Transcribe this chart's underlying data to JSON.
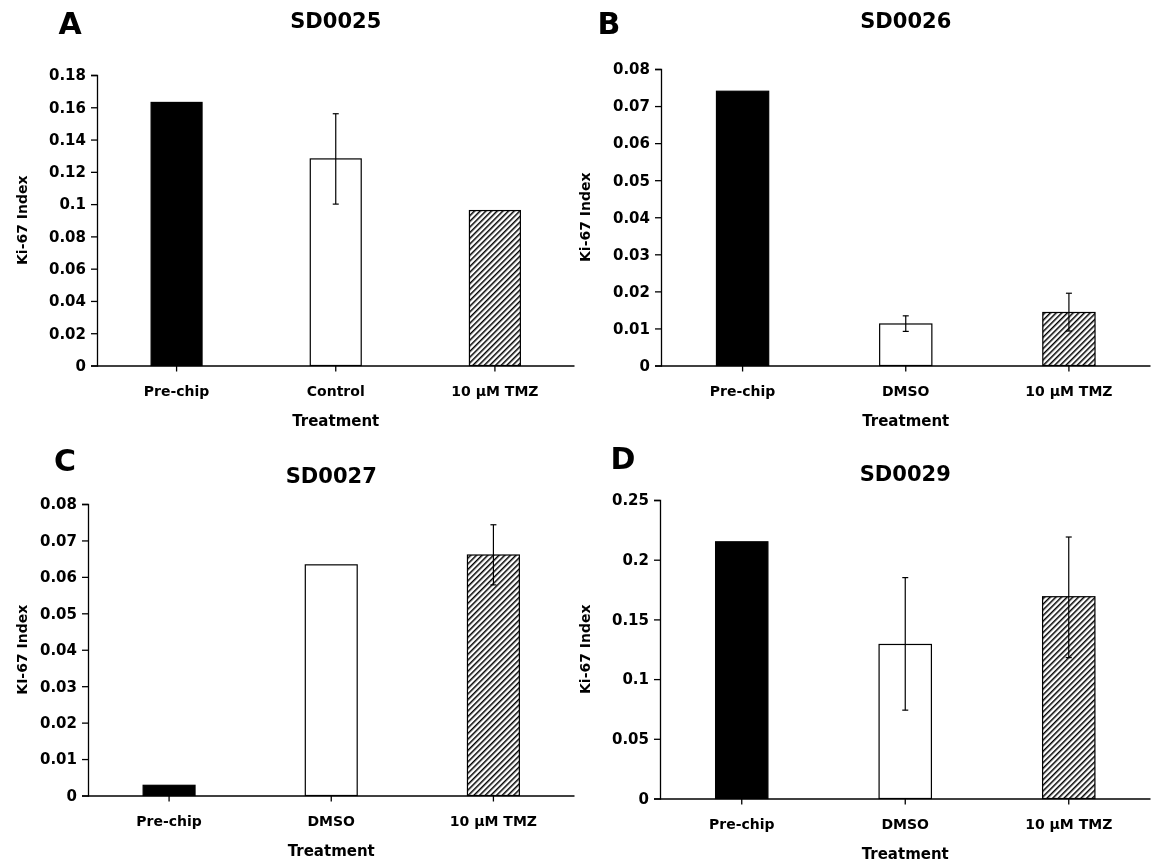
{
  "chart_data": [
    {
      "type": "bar",
      "title": "SD0025",
      "annotations": [
        "A"
      ],
      "xlabel": "Treatment",
      "ylabel": "Ki-67 Index",
      "categories": [
        "Pre-chip",
        "Control",
        "10 μM TMZ"
      ],
      "values": [
        0.163,
        0.128,
        0.096
      ],
      "colors": [
        "#000000",
        "#ffffff",
        "#000000"
      ],
      "errors": [
        null,
        [
          0.1,
          0.156
        ],
        null
      ],
      "ylim": [
        0,
        0.18
      ],
      "yticks": [
        {
          "value": 0,
          "label": "0"
        },
        {
          "value": 0.02,
          "label": "0.02"
        },
        {
          "value": 0.04,
          "label": "0.04"
        },
        {
          "value": 0.06,
          "label": "0.06"
        },
        {
          "value": 0.08,
          "label": "0.08"
        },
        {
          "value": 0.1,
          "label": "0.1"
        },
        {
          "value": 0.12,
          "label": "0.12"
        },
        {
          "value": 0.14,
          "label": "0.14"
        },
        {
          "value": 0.16,
          "label": "0.16"
        },
        {
          "value": 0.18,
          "label": "0.18"
        }
      ],
      "grid": false
    },
    {
      "type": "bar",
      "title": "SD0026",
      "annotations": [
        "B"
      ],
      "xlabel": "Treatment",
      "ylabel": "Ki-67 Index",
      "categories": [
        "Pre-chip",
        "DMSO",
        "10 μM TMZ"
      ],
      "values": [
        0.074,
        0.0112,
        0.0143
      ],
      "colors": [
        "#000000",
        "#ffffff",
        "#000000"
      ],
      "errors": [
        null,
        [
          0.0092,
          0.0134
        ],
        [
          0.0093,
          0.0195
        ]
      ],
      "ylim": [
        0,
        0.08
      ],
      "yticks": [
        {
          "value": 0,
          "label": "0"
        },
        {
          "value": 0.01,
          "label": "0.01"
        },
        {
          "value": 0.02,
          "label": "0.02"
        },
        {
          "value": 0.03,
          "label": "0.03"
        },
        {
          "value": 0.04,
          "label": "0.04"
        },
        {
          "value": 0.05,
          "label": "0.05"
        },
        {
          "value": 0.06,
          "label": "0.06"
        },
        {
          "value": 0.07,
          "label": "0.07"
        },
        {
          "value": 0.08,
          "label": "0.08"
        }
      ],
      "grid": false
    },
    {
      "type": "bar",
      "title": "SD0027",
      "annotations": [
        "C"
      ],
      "xlabel": "Treatment",
      "ylabel": "KI-67 Index",
      "categories": [
        "Pre-chip",
        "DMSO",
        "10 μM TMZ"
      ],
      "values": [
        0.0028,
        0.0633,
        0.066
      ],
      "colors": [
        "#000000",
        "#ffffff",
        "#000000"
      ],
      "errors": [
        null,
        null,
        [
          0.0578,
          0.0743
        ]
      ],
      "ylim": [
        0,
        0.08
      ],
      "yticks": [
        {
          "value": 0,
          "label": "0"
        },
        {
          "value": 0.01,
          "label": "0.01"
        },
        {
          "value": 0.02,
          "label": "0.02"
        },
        {
          "value": 0.03,
          "label": "0.03"
        },
        {
          "value": 0.04,
          "label": "0.04"
        },
        {
          "value": 0.05,
          "label": "0.05"
        },
        {
          "value": 0.06,
          "label": "0.06"
        },
        {
          "value": 0.07,
          "label": "0.07"
        },
        {
          "value": 0.08,
          "label": "0.08"
        }
      ],
      "grid": false
    },
    {
      "type": "bar",
      "title": "SD0029",
      "annotations": [
        "D"
      ],
      "xlabel": "Treatment",
      "ylabel": "Ki-67 Index",
      "categories": [
        "Pre-chip",
        "DMSO",
        "10 μM TMZ"
      ],
      "values": [
        0.215,
        0.129,
        0.169
      ],
      "colors": [
        "#000000",
        "#ffffff",
        "#000000"
      ],
      "errors": [
        null,
        [
          0.074,
          0.185
        ],
        [
          0.118,
          0.219
        ]
      ],
      "ylim": [
        0,
        0.25
      ],
      "yticks": [
        {
          "value": 0,
          "label": "0"
        },
        {
          "value": 0.05,
          "label": "0.05"
        },
        {
          "value": 0.1,
          "label": "0.1"
        },
        {
          "value": 0.15,
          "label": "0.15"
        },
        {
          "value": 0.2,
          "label": "0.2"
        },
        {
          "value": 0.25,
          "label": "0.25"
        }
      ],
      "grid": false
    }
  ]
}
